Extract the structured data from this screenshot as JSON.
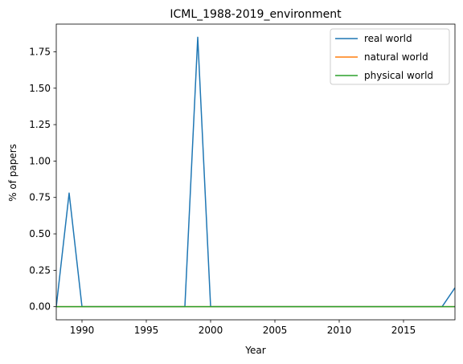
{
  "chart_data": {
    "type": "line",
    "title": "ICML_1988-2019_environment",
    "xlabel": "Year",
    "ylabel": "% of papers",
    "xlim": [
      1988,
      2019
    ],
    "ylim": [
      -0.09,
      1.94
    ],
    "xticks": [
      1990,
      1995,
      2000,
      2005,
      2010,
      2015
    ],
    "yticks": [
      0.0,
      0.25,
      0.5,
      0.75,
      1.0,
      1.25,
      1.5,
      1.75
    ],
    "grid": false,
    "legend_position": "top-right",
    "x": [
      1988,
      1989,
      1990,
      1991,
      1992,
      1993,
      1994,
      1995,
      1996,
      1997,
      1998,
      1999,
      2000,
      2001,
      2002,
      2003,
      2004,
      2005,
      2006,
      2007,
      2008,
      2009,
      2010,
      2011,
      2012,
      2013,
      2014,
      2015,
      2016,
      2017,
      2018,
      2019
    ],
    "series": [
      {
        "name": "real world",
        "color": "#1f77b4",
        "values": [
          0,
          0.78,
          0,
          0,
          0,
          0,
          0,
          0,
          0,
          0,
          0,
          1.85,
          0,
          0,
          0,
          0,
          0,
          0,
          0,
          0,
          0,
          0,
          0,
          0,
          0,
          0,
          0,
          0,
          0,
          0,
          0,
          0.13
        ]
      },
      {
        "name": "natural world",
        "color": "#ff7f0e",
        "values": [
          0,
          0,
          0,
          0,
          0,
          0,
          0,
          0,
          0,
          0,
          0,
          0,
          0,
          0,
          0,
          0,
          0,
          0,
          0,
          0,
          0,
          0,
          0,
          0,
          0,
          0,
          0,
          0,
          0,
          0,
          0,
          0
        ]
      },
      {
        "name": "physical world",
        "color": "#2ca02c",
        "values": [
          0,
          0,
          0,
          0,
          0,
          0,
          0,
          0,
          0,
          0,
          0,
          0,
          0,
          0,
          0,
          0,
          0,
          0,
          0,
          0,
          0,
          0,
          0,
          0,
          0,
          0,
          0,
          0,
          0,
          0,
          0,
          0
        ]
      }
    ]
  }
}
